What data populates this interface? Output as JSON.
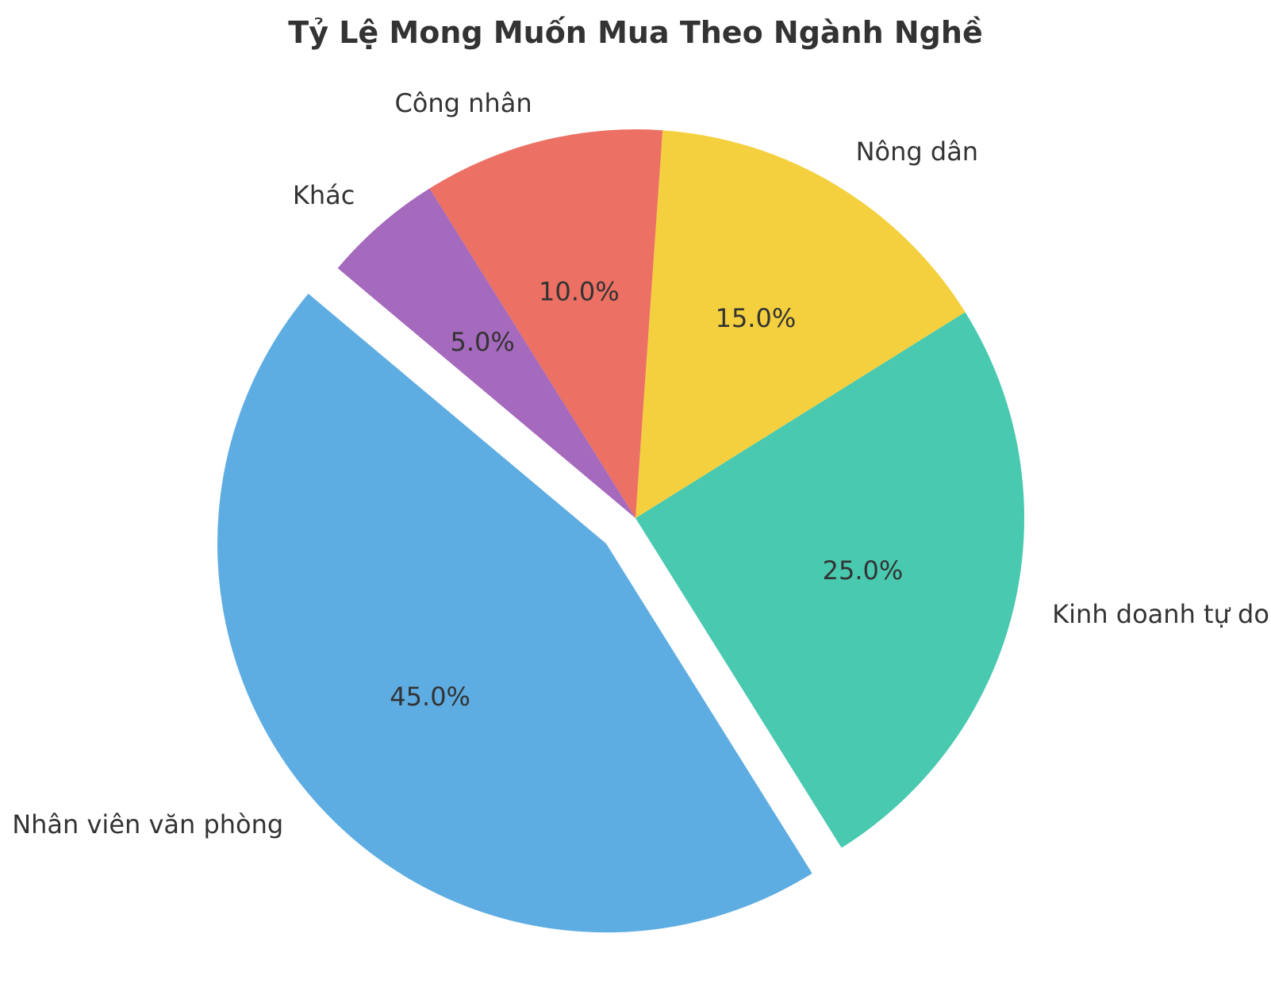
{
  "chart_data": {
    "type": "pie",
    "title": "Tỷ Lệ Mong Muốn Mua Theo Ngành Nghề",
    "categories": [
      "Nhân viên văn phòng",
      "Kinh doanh tự do",
      "Nông dân",
      "Công nhân",
      "Khác"
    ],
    "values": [
      45.0,
      25.0,
      15.0,
      10.0,
      5.0
    ],
    "value_labels": [
      "45.0%",
      "25.0%",
      "15.0%",
      "10.0%",
      "5.0%"
    ],
    "colors": [
      "#5DADE2",
      "#48C9B0",
      "#F4D03F",
      "#EC7063",
      "#A569BD"
    ],
    "exploded": [
      "Nhân viên văn phòng"
    ],
    "start_angle_deg": 140,
    "direction": "counterclockwise",
    "legend": "none"
  }
}
